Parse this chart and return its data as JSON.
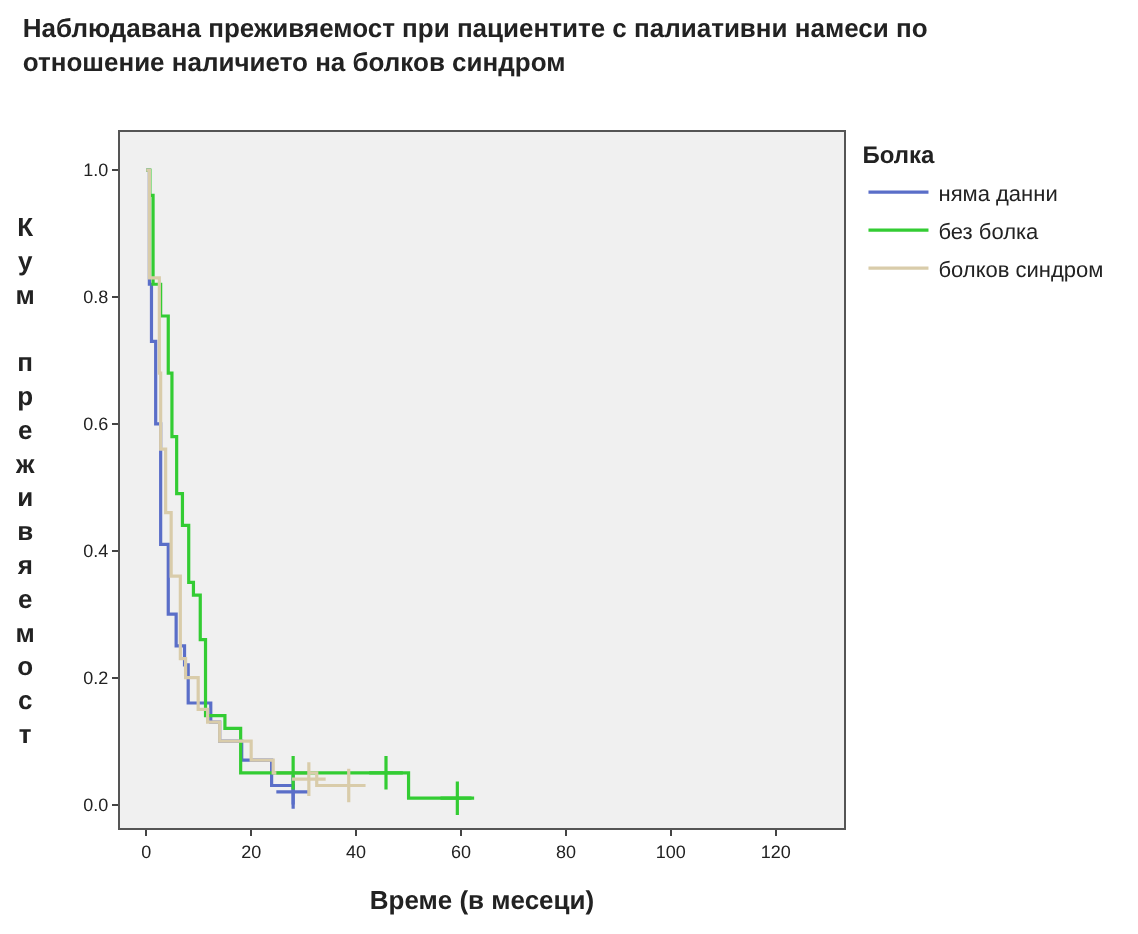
{
  "chart_data": {
    "type": "step",
    "title": "Наблюдавана преживяемост при пациентите с палиативни намеси по\nотношение наличието на болков синдром",
    "xlabel": "Време (в месеци)",
    "ylabel": "Кум преживяемост",
    "legend_title": "Болка",
    "xlim": [
      -5,
      133
    ],
    "xticks": [
      0,
      20,
      40,
      60,
      80,
      100,
      120
    ],
    "ylim": [
      -0.037,
      1.06
    ],
    "yticks": [
      {
        "value": 0,
        "label": "0.0"
      },
      {
        "value": 0.2,
        "label": "0.2"
      },
      {
        "value": 0.4,
        "label": "0.4"
      },
      {
        "value": 0.6,
        "label": "0.6"
      },
      {
        "value": 0.8,
        "label": "0.8"
      },
      {
        "value": 1,
        "label": "1.0"
      }
    ],
    "grid": false,
    "legend": "top right",
    "series": [
      {
        "name": "няма данни",
        "color": "#5a6ec8",
        "x": [
          0,
          0.6,
          1.0,
          1.8,
          2.75,
          4.2,
          5.7,
          7.3,
          8,
          12.3,
          14,
          18.2,
          23.9,
          28
        ],
        "values": [
          1,
          0.82,
          0.73,
          0.6,
          0.41,
          0.3,
          0.25,
          0.22,
          0.16,
          0.13,
          0.1,
          0.07,
          0.03,
          0
        ]
      },
      {
        "name": "без болка",
        "color": "#33cc33",
        "x": [
          0,
          0.7,
          1.3,
          2.75,
          4.2,
          4.9,
          5.8,
          6.9,
          8.1,
          9.0,
          10.3,
          11.3,
          15,
          18,
          50,
          62
        ],
        "values": [
          1,
          0.96,
          0.82,
          0.77,
          0.68,
          0.58,
          0.49,
          0.44,
          0.35,
          0.33,
          0.26,
          0.14,
          0.12,
          0.05,
          0.01,
          0.01
        ]
      },
      {
        "name": "болков синдром",
        "color": "#d9ccaa",
        "x": [
          0,
          0.6,
          2.5,
          2.75,
          3.7,
          4.75,
          6.5,
          7.5,
          9.9,
          11.7,
          14,
          20,
          24.2,
          32.5,
          41.4
        ],
        "values": [
          1,
          0.83,
          0.68,
          0.56,
          0.46,
          0.36,
          0.23,
          0.2,
          0.15,
          0.13,
          0.1,
          0.07,
          0.05,
          0.03,
          0.03
        ]
      },
      {
        "type": "scatter",
        "marker": "cross",
        "color": "#5a6ec8",
        "x": [
          28
        ],
        "values": [
          0.02
        ]
      },
      {
        "type": "scatter",
        "marker": "cross",
        "color": "#33cc33",
        "x": [
          28,
          45.7,
          59.3
        ],
        "values": [
          0.05,
          0.05,
          0.01
        ]
      },
      {
        "type": "scatter",
        "marker": "cross",
        "color": "#d9ccaa",
        "x": [
          31,
          38.6
        ],
        "values": [
          0.04,
          0.03
        ]
      }
    ]
  }
}
